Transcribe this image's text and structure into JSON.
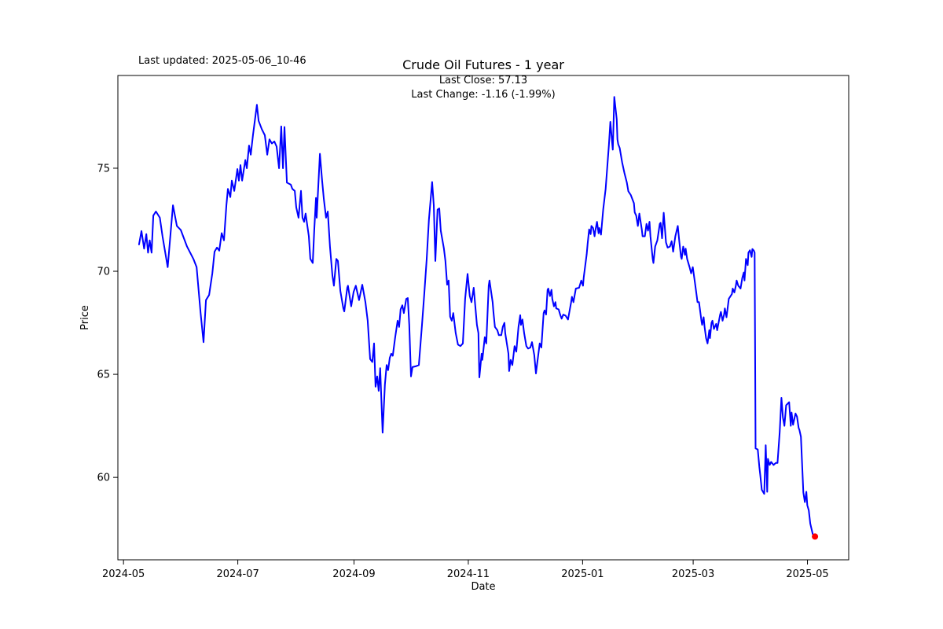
{
  "header": {
    "last_updated": "Last updated: 2025-05-06_10-46"
  },
  "chart_data": {
    "type": "line",
    "title": "Crude Oil Futures - 1 year",
    "annotation_line1": "Last Close: 57.13",
    "annotation_line2": "Last Change: -1.16 (-1.99%)",
    "xlabel": "Date",
    "ylabel": "Price",
    "last_close": 57.13,
    "last_change": -1.16,
    "last_change_pct": -1.99,
    "line_color": "#0000ff",
    "last_point_marker_color": "#ff0000",
    "grid": false,
    "legend": "none",
    "x_epoch_note": "day 0 = 2024-05-01",
    "x_range_days": [
      -3,
      387
    ],
    "y_range": [
      56.0,
      79.5
    ],
    "x_ticks": [
      {
        "label": "2024-05",
        "day": 0
      },
      {
        "label": "2024-07",
        "day": 61
      },
      {
        "label": "2024-09",
        "day": 123
      },
      {
        "label": "2024-11",
        "day": 184
      },
      {
        "label": "2025-01",
        "day": 245
      },
      {
        "label": "2025-03",
        "day": 304
      },
      {
        "label": "2025-05",
        "day": 365
      }
    ],
    "y_ticks": [
      {
        "label": "60",
        "value": 60
      },
      {
        "label": "65",
        "value": 65
      },
      {
        "label": "70",
        "value": 70
      },
      {
        "label": "75",
        "value": 75
      }
    ],
    "points_day_price": [
      [
        8.3,
        71.3
      ],
      [
        9.6,
        71.95
      ],
      [
        11,
        71.1
      ],
      [
        12.2,
        71.8
      ],
      [
        13.1,
        70.9
      ],
      [
        14,
        71.5
      ],
      [
        15,
        70.9
      ],
      [
        15.9,
        72.7
      ],
      [
        17.3,
        72.9
      ],
      [
        19.4,
        72.6
      ],
      [
        20.8,
        71.7
      ],
      [
        23.6,
        70.2
      ],
      [
        26.4,
        73.2
      ],
      [
        28.5,
        72.2
      ],
      [
        30.6,
        72
      ],
      [
        33.9,
        71.2
      ],
      [
        37.3,
        70.6
      ],
      [
        39,
        70.2
      ],
      [
        41.1,
        68
      ],
      [
        42.7,
        66.56
      ],
      [
        44,
        68.6
      ],
      [
        45.7,
        68.85
      ],
      [
        47.4,
        69.9
      ],
      [
        48.6,
        70.95
      ],
      [
        49.9,
        71.15
      ],
      [
        51.1,
        71
      ],
      [
        52.4,
        71.85
      ],
      [
        53.6,
        71.5
      ],
      [
        54.9,
        73.2
      ],
      [
        55.7,
        74
      ],
      [
        57,
        73.6
      ],
      [
        57.8,
        74.4
      ],
      [
        59.1,
        73.9
      ],
      [
        60.8,
        74.96
      ],
      [
        61.6,
        74.4
      ],
      [
        62.4,
        75.15
      ],
      [
        63.3,
        74.4
      ],
      [
        65,
        75.4
      ],
      [
        65.8,
        75
      ],
      [
        67,
        76.1
      ],
      [
        67.9,
        75.66
      ],
      [
        69.1,
        76.6
      ],
      [
        71.2,
        78.08
      ],
      [
        72.1,
        77.3
      ],
      [
        73.8,
        76.9
      ],
      [
        75.4,
        76.6
      ],
      [
        76.7,
        75.66
      ],
      [
        77.9,
        76.4
      ],
      [
        79.2,
        76.2
      ],
      [
        80.5,
        76.3
      ],
      [
        81.7,
        76.05
      ],
      [
        83,
        75
      ],
      [
        84.2,
        77.03
      ],
      [
        85.1,
        75
      ],
      [
        85.9,
        77
      ],
      [
        87.2,
        74.3
      ],
      [
        89.3,
        74.2
      ],
      [
        90.1,
        74
      ],
      [
        91.4,
        73.9
      ],
      [
        92.2,
        73.1
      ],
      [
        93.4,
        72.6
      ],
      [
        94.7,
        73.9
      ],
      [
        95.5,
        72.6
      ],
      [
        96.4,
        72.4
      ],
      [
        97.2,
        72.8
      ],
      [
        98.9,
        71.7
      ],
      [
        99.7,
        70.6
      ],
      [
        101,
        70.4
      ],
      [
        101.8,
        72
      ],
      [
        102.7,
        73.56
      ],
      [
        103.1,
        72.6
      ],
      [
        104.8,
        75.7
      ],
      [
        106,
        74.4
      ],
      [
        106.9,
        73.5
      ],
      [
        108.1,
        72.6
      ],
      [
        109,
        72.9
      ],
      [
        110.2,
        71.2
      ],
      [
        111.5,
        69.8
      ],
      [
        112.3,
        69.3
      ],
      [
        113.6,
        70.6
      ],
      [
        114.4,
        70.5
      ],
      [
        115.7,
        69.05
      ],
      [
        117.3,
        68.2
      ],
      [
        117.8,
        68.05
      ],
      [
        119.4,
        69.2
      ],
      [
        119.8,
        69.3
      ],
      [
        121.5,
        68.3
      ],
      [
        122.8,
        69
      ],
      [
        124,
        69.3
      ],
      [
        125.7,
        68.6
      ],
      [
        127.4,
        69.35
      ],
      [
        129.1,
        68.5
      ],
      [
        130.3,
        67.6
      ],
      [
        131.6,
        65.74
      ],
      [
        132.8,
        65.6
      ],
      [
        133.7,
        66.5
      ],
      [
        134.5,
        64.4
      ],
      [
        135.4,
        64.9
      ],
      [
        136.2,
        64.2
      ],
      [
        137,
        65.3
      ],
      [
        138.3,
        62.17
      ],
      [
        139.5,
        64.5
      ],
      [
        140.4,
        65.45
      ],
      [
        141.2,
        65.2
      ],
      [
        142.1,
        65.8
      ],
      [
        142.9,
        66
      ],
      [
        143.7,
        65.9
      ],
      [
        145,
        66.8
      ],
      [
        146.3,
        67.6
      ],
      [
        147.1,
        67.3
      ],
      [
        147.9,
        68.15
      ],
      [
        148.8,
        68.35
      ],
      [
        149.6,
        67.97
      ],
      [
        150.9,
        68.66
      ],
      [
        151.7,
        68.7
      ],
      [
        152.5,
        67.4
      ],
      [
        153.4,
        64.9
      ],
      [
        154.2,
        65.35
      ],
      [
        156.3,
        65.4
      ],
      [
        157.6,
        65.45
      ],
      [
        159.3,
        67.4
      ],
      [
        160.5,
        68.9
      ],
      [
        161.8,
        70.6
      ],
      [
        163,
        72.5
      ],
      [
        164.7,
        74.33
      ],
      [
        165.6,
        73.2
      ],
      [
        166.4,
        70.5
      ],
      [
        167.6,
        72.99
      ],
      [
        168.5,
        73.05
      ],
      [
        169.3,
        71.97
      ],
      [
        171,
        71.1
      ],
      [
        171.8,
        70.5
      ],
      [
        172.7,
        69.35
      ],
      [
        173.5,
        69.55
      ],
      [
        174.3,
        67.8
      ],
      [
        175.2,
        67.6
      ],
      [
        176,
        67.97
      ],
      [
        177.3,
        67
      ],
      [
        178.5,
        66.44
      ],
      [
        179.8,
        66.37
      ],
      [
        181.1,
        66.5
      ],
      [
        182.3,
        68.66
      ],
      [
        183.6,
        69.87
      ],
      [
        184.8,
        68.8
      ],
      [
        185.7,
        68.5
      ],
      [
        186.9,
        69.2
      ],
      [
        188.6,
        67.4
      ],
      [
        189.4,
        67
      ],
      [
        189.9,
        64.85
      ],
      [
        191.1,
        66
      ],
      [
        191.5,
        65.7
      ],
      [
        192.8,
        66.8
      ],
      [
        193.6,
        66.5
      ],
      [
        194.9,
        69.3
      ],
      [
        195.3,
        69.55
      ],
      [
        197,
        68.5
      ],
      [
        197.4,
        68.03
      ],
      [
        198.2,
        67.3
      ],
      [
        199.5,
        67.14
      ],
      [
        200.3,
        66.9
      ],
      [
        201.6,
        66.9
      ],
      [
        202.4,
        67.3
      ],
      [
        203.3,
        67.5
      ],
      [
        203.7,
        67
      ],
      [
        205.4,
        66
      ],
      [
        205.8,
        65.16
      ],
      [
        206.6,
        65.7
      ],
      [
        207.5,
        65.45
      ],
      [
        208.7,
        66.37
      ],
      [
        209.6,
        66.1
      ],
      [
        210.8,
        67.3
      ],
      [
        211.7,
        67.87
      ],
      [
        212.1,
        67.4
      ],
      [
        212.9,
        67.66
      ],
      [
        213.8,
        67
      ],
      [
        215,
        66.37
      ],
      [
        215.9,
        66.25
      ],
      [
        217.1,
        66.3
      ],
      [
        218,
        66.56
      ],
      [
        219.2,
        65.93
      ],
      [
        220.1,
        65.04
      ],
      [
        220.5,
        65.35
      ],
      [
        222.1,
        66.5
      ],
      [
        223,
        66.3
      ],
      [
        224.2,
        67.97
      ],
      [
        224.7,
        68.1
      ],
      [
        225.5,
        67.9
      ],
      [
        226.3,
        69.1
      ],
      [
        226.7,
        69.16
      ],
      [
        227.6,
        68.8
      ],
      [
        228.4,
        69.1
      ],
      [
        228.8,
        68.66
      ],
      [
        229.7,
        68.3
      ],
      [
        230.5,
        68.5
      ],
      [
        230.9,
        68.2
      ],
      [
        232.2,
        68.15
      ],
      [
        233,
        67.9
      ],
      [
        233.8,
        67.7
      ],
      [
        234.7,
        67.9
      ],
      [
        235.9,
        67.85
      ],
      [
        237.2,
        67.66
      ],
      [
        238.9,
        68.5
      ],
      [
        239.3,
        68.76
      ],
      [
        240.1,
        68.5
      ],
      [
        241.4,
        69.16
      ],
      [
        243.1,
        69.2
      ],
      [
        244.3,
        69.55
      ],
      [
        245.2,
        69.3
      ],
      [
        245.6,
        69.7
      ],
      [
        247.2,
        70.83
      ],
      [
        247.7,
        71.34
      ],
      [
        248.5,
        72.03
      ],
      [
        249.3,
        71.8
      ],
      [
        249.7,
        72.2
      ],
      [
        250.6,
        72.1
      ],
      [
        251.4,
        71.7
      ],
      [
        251.8,
        71.97
      ],
      [
        252.7,
        72.4
      ],
      [
        253.5,
        71.84
      ],
      [
        253.9,
        72.1
      ],
      [
        254.8,
        71.78
      ],
      [
        256,
        73
      ],
      [
        257.3,
        74
      ],
      [
        259,
        76.1
      ],
      [
        259.8,
        77.25
      ],
      [
        260.6,
        76.4
      ],
      [
        261.1,
        75.9
      ],
      [
        261.9,
        78.46
      ],
      [
        263.2,
        77.38
      ],
      [
        263.6,
        76.4
      ],
      [
        264,
        76.17
      ],
      [
        264.8,
        75.98
      ],
      [
        266.1,
        75.28
      ],
      [
        267.3,
        74.77
      ],
      [
        268.6,
        74.3
      ],
      [
        269.4,
        73.88
      ],
      [
        270.7,
        73.7
      ],
      [
        272.4,
        73.3
      ],
      [
        272.8,
        72.86
      ],
      [
        273.6,
        72.7
      ],
      [
        274.5,
        72.2
      ],
      [
        275.3,
        72.8
      ],
      [
        276.6,
        72.03
      ],
      [
        277,
        71.7
      ],
      [
        278.2,
        71.7
      ],
      [
        279.1,
        72.3
      ],
      [
        279.9,
        71.97
      ],
      [
        280.7,
        72.4
      ],
      [
        281.2,
        71.7
      ],
      [
        282.4,
        70.6
      ],
      [
        282.8,
        70.4
      ],
      [
        283.7,
        71.2
      ],
      [
        284.9,
        71.5
      ],
      [
        286.2,
        72.3
      ],
      [
        286.6,
        72.35
      ],
      [
        287.4,
        71.6
      ],
      [
        288.3,
        72.84
      ],
      [
        289.5,
        71.4
      ],
      [
        290.4,
        71.15
      ],
      [
        291.6,
        71.2
      ],
      [
        292.5,
        71.46
      ],
      [
        293.3,
        70.95
      ],
      [
        294.5,
        71.7
      ],
      [
        295.8,
        72.2
      ],
      [
        296.6,
        71.46
      ],
      [
        297.5,
        70.7
      ],
      [
        297.9,
        70.6
      ],
      [
        298.7,
        71.2
      ],
      [
        299.6,
        70.8
      ],
      [
        300,
        71.1
      ],
      [
        300.8,
        70.6
      ],
      [
        302.1,
        70.2
      ],
      [
        302.9,
        69.9
      ],
      [
        303.8,
        70.2
      ],
      [
        305,
        69.4
      ],
      [
        305.9,
        68.8
      ],
      [
        306.3,
        68.5
      ],
      [
        307.1,
        68.5
      ],
      [
        308.4,
        67.6
      ],
      [
        308.8,
        67.4
      ],
      [
        309.6,
        67.77
      ],
      [
        310.1,
        67.3
      ],
      [
        310.9,
        66.76
      ],
      [
        311.7,
        66.5
      ],
      [
        312.6,
        67.14
      ],
      [
        313,
        66.76
      ],
      [
        313.8,
        67.5
      ],
      [
        314.3,
        67.6
      ],
      [
        315.1,
        67.2
      ],
      [
        316.3,
        67.45
      ],
      [
        316.8,
        67.14
      ],
      [
        318.4,
        67.9
      ],
      [
        318.8,
        68.03
      ],
      [
        319.7,
        67.6
      ],
      [
        320.5,
        67.9
      ],
      [
        320.9,
        68.2
      ],
      [
        321.8,
        67.77
      ],
      [
        323,
        68.66
      ],
      [
        324.7,
        68.9
      ],
      [
        325.1,
        69.16
      ],
      [
        326,
        68.97
      ],
      [
        326.8,
        69.3
      ],
      [
        327.2,
        69.55
      ],
      [
        328.1,
        69.3
      ],
      [
        329.3,
        69.16
      ],
      [
        330.2,
        69.68
      ],
      [
        331,
        69.94
      ],
      [
        331.4,
        69.55
      ],
      [
        332.2,
        70.6
      ],
      [
        333.1,
        70.3
      ],
      [
        333.5,
        70.9
      ],
      [
        334.3,
        71.02
      ],
      [
        335.2,
        70.7
      ],
      [
        335.6,
        71.08
      ],
      [
        336.4,
        71
      ],
      [
        336.8,
        70.9
      ],
      [
        337.3,
        61.41
      ],
      [
        338.5,
        61.35
      ],
      [
        339.3,
        60.5
      ],
      [
        339.8,
        60.14
      ],
      [
        340.6,
        59.4
      ],
      [
        341.9,
        59.2
      ],
      [
        342.7,
        61.56
      ],
      [
        343.5,
        59.3
      ],
      [
        343.9,
        60.9
      ],
      [
        344.8,
        60.6
      ],
      [
        345.6,
        60.75
      ],
      [
        346.9,
        60.6
      ],
      [
        348.1,
        60.7
      ],
      [
        349,
        60.7
      ],
      [
        350.2,
        62.2
      ],
      [
        351.1,
        63.86
      ],
      [
        351.9,
        62.9
      ],
      [
        352.7,
        62.5
      ],
      [
        353.6,
        63.5
      ],
      [
        355.2,
        63.65
      ],
      [
        356.1,
        62.5
      ],
      [
        356.5,
        63.15
      ],
      [
        357.3,
        62.55
      ],
      [
        358.6,
        63.1
      ],
      [
        359.4,
        62.95
      ],
      [
        360.3,
        62.4
      ],
      [
        360.7,
        62.3
      ],
      [
        361.5,
        61.97
      ],
      [
        362.8,
        59.26
      ],
      [
        363.6,
        58.8
      ],
      [
        364.4,
        59.3
      ],
      [
        364.9,
        58.65
      ],
      [
        365.7,
        58.4
      ],
      [
        366.5,
        57.76
      ],
      [
        367.8,
        57.25
      ],
      [
        369,
        57.13
      ]
    ]
  }
}
